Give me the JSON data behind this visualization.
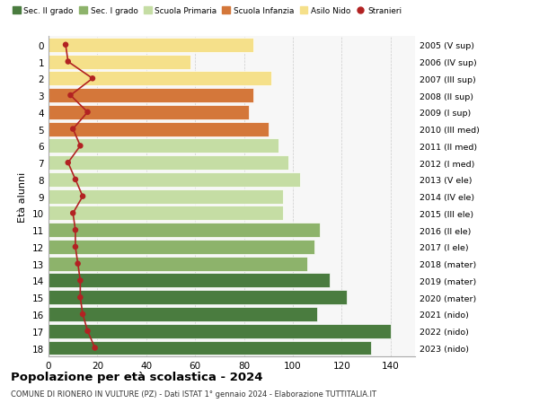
{
  "ages": [
    0,
    1,
    2,
    3,
    4,
    5,
    6,
    7,
    8,
    9,
    10,
    11,
    12,
    13,
    14,
    15,
    16,
    17,
    18
  ],
  "years": [
    "2023 (nido)",
    "2022 (nido)",
    "2021 (nido)",
    "2020 (mater)",
    "2019 (mater)",
    "2018 (mater)",
    "2017 (I ele)",
    "2016 (II ele)",
    "2015 (III ele)",
    "2014 (IV ele)",
    "2013 (V ele)",
    "2012 (I med)",
    "2011 (II med)",
    "2010 (III med)",
    "2009 (I sup)",
    "2008 (II sup)",
    "2007 (III sup)",
    "2006 (IV sup)",
    "2005 (V sup)"
  ],
  "bar_values": [
    84,
    58,
    91,
    84,
    82,
    90,
    94,
    98,
    103,
    96,
    96,
    111,
    109,
    106,
    115,
    122,
    110,
    140,
    132
  ],
  "bar_colors": [
    "#f5e08a",
    "#f5e08a",
    "#f5e08a",
    "#d4773a",
    "#d4773a",
    "#d4773a",
    "#c5dda4",
    "#c5dda4",
    "#c5dda4",
    "#c5dda4",
    "#c5dda4",
    "#8db36b",
    "#8db36b",
    "#8db36b",
    "#4a7c3f",
    "#4a7c3f",
    "#4a7c3f",
    "#4a7c3f",
    "#4a7c3f"
  ],
  "stranieri_values": [
    7,
    8,
    18,
    9,
    16,
    10,
    13,
    8,
    11,
    14,
    10,
    11,
    11,
    12,
    13,
    13,
    14,
    16,
    19
  ],
  "legend_labels": [
    "Sec. II grado",
    "Sec. I grado",
    "Scuola Primaria",
    "Scuola Infanzia",
    "Asilo Nido",
    "Stranieri"
  ],
  "legend_colors": [
    "#4a7c3f",
    "#8db36b",
    "#c5dda4",
    "#d4773a",
    "#f5e08a",
    "#c0392b"
  ],
  "title": "Popolazione per età scolastica - 2024",
  "subtitle": "COMUNE DI RIONERO IN VULTURE (PZ) - Dati ISTAT 1° gennaio 2024 - Elaborazione TUTTITALIA.IT",
  "ylabel": "Età alunni",
  "bg_color": "#f7f7f7",
  "grid_color": "#cccccc",
  "stranieri_color": "#b22222"
}
